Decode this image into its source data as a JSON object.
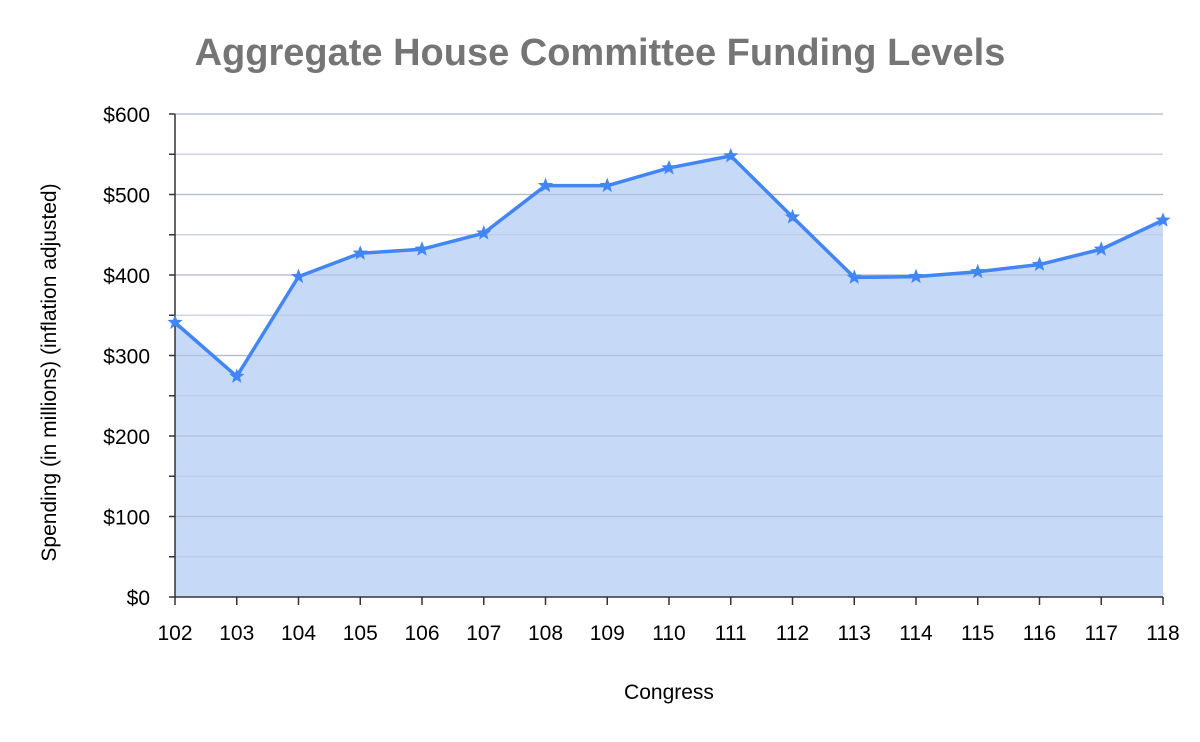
{
  "chart_data": {
    "type": "area",
    "title": "Aggregate House Committee Funding Levels",
    "xlabel": "Congress",
    "ylabel": "Spending (in millions) (inflation adjusted)",
    "categories": [
      "102",
      "103",
      "104",
      "105",
      "106",
      "107",
      "108",
      "109",
      "110",
      "111",
      "112",
      "113",
      "114",
      "115",
      "116",
      "117",
      "118"
    ],
    "series": [
      {
        "values": [
          341,
          274,
          398,
          427,
          432,
          452,
          511,
          511,
          533,
          548,
          472,
          397,
          398,
          404,
          413,
          432,
          468
        ],
        "line_color": "#4285f4",
        "fill_color": "#c6d9f7",
        "marker": "star"
      }
    ],
    "ylim": [
      0,
      600
    ],
    "yticks": [
      0,
      100,
      200,
      300,
      400,
      500,
      600
    ],
    "ytick_labels": [
      "$0",
      "$100",
      "$200",
      "$300",
      "$400",
      "$500",
      "$600"
    ],
    "grid": true,
    "legend": "none"
  }
}
